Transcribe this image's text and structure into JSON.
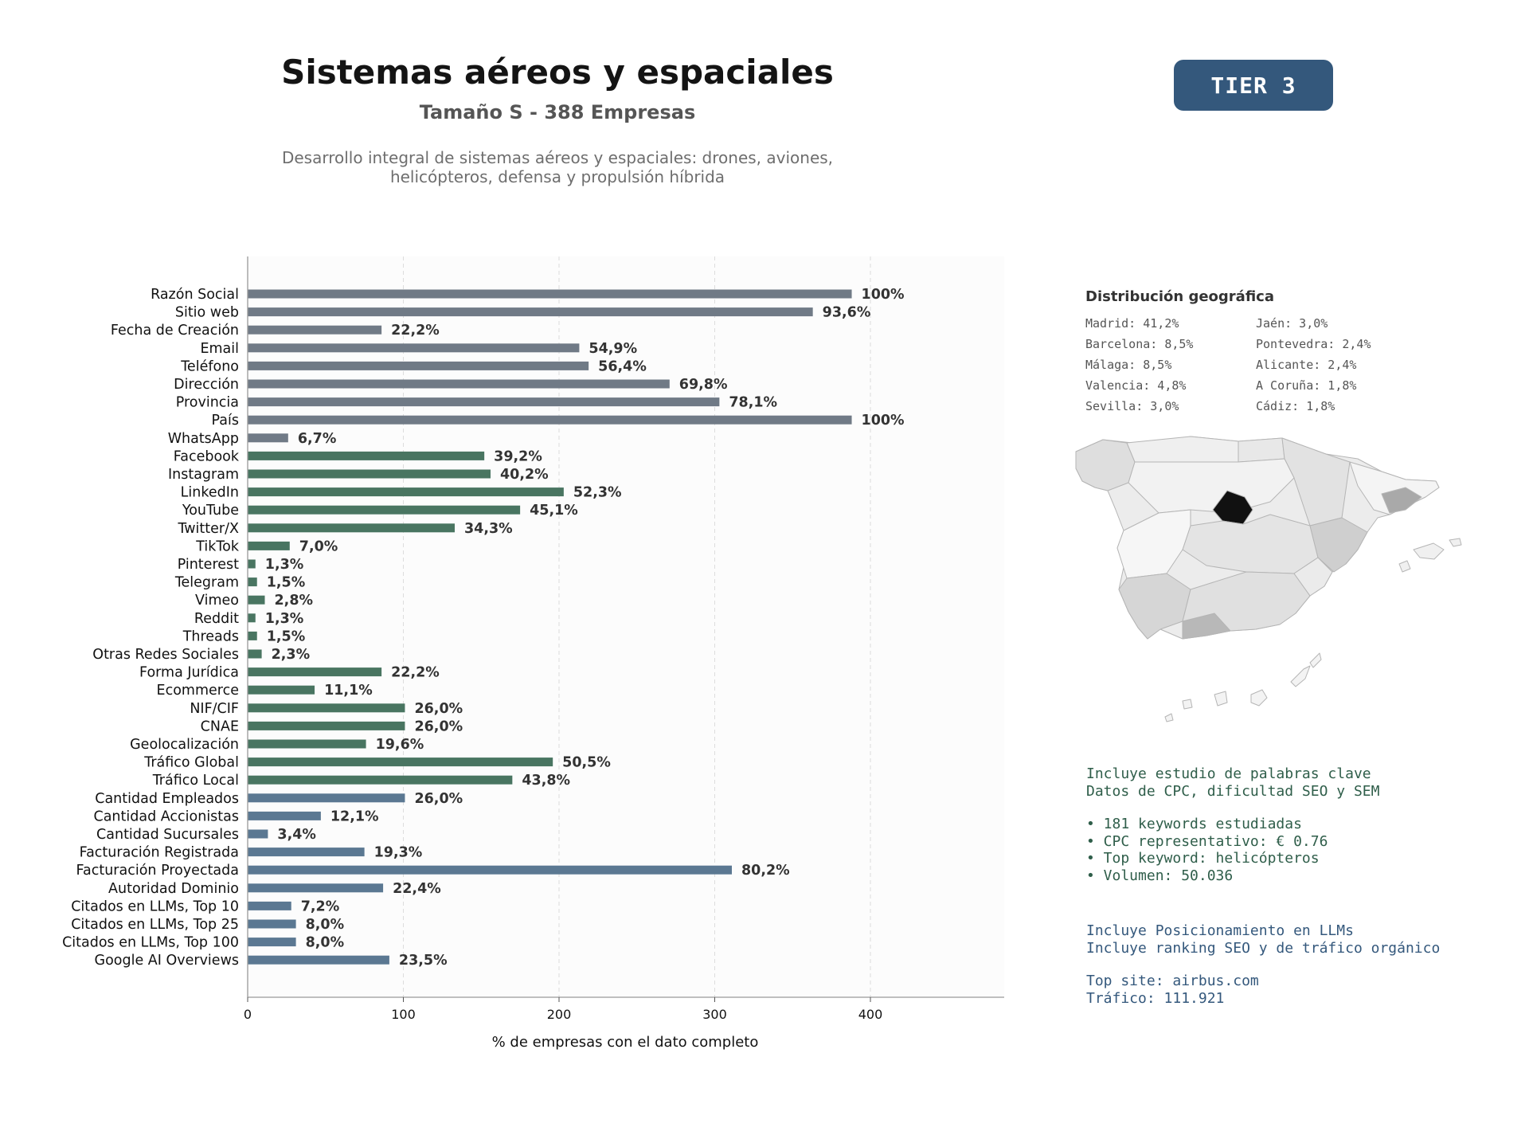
{
  "header": {
    "title": "Sistemas aéreos y espaciales",
    "subtitle": "Tamaño S - 388 Empresas",
    "description_line1": "Desarrollo integral de sistemas aéreos y espaciales: drones, aviones,",
    "description_line2": "helicópteros, defensa y propulsión híbrida",
    "tier_label": "TIER 3"
  },
  "colors": {
    "gray": "#707a86",
    "green": "#497561",
    "blue": "#5b7892"
  },
  "chart_data": {
    "type": "bar",
    "orientation": "horizontal",
    "xlabel": "% de empresas con el dato completo",
    "xlim": [
      0,
      480
    ],
    "xticks": [
      0,
      100,
      200,
      300,
      400
    ],
    "grid": "vertical dashed",
    "categories": [
      "Razón Social",
      "Sitio web",
      "Fecha de Creación",
      "Email",
      "Teléfono",
      "Dirección",
      "Provincia",
      "País",
      "WhatsApp",
      "Facebook",
      "Instagram",
      "LinkedIn",
      "YouTube",
      "Twitter/X",
      "TikTok",
      "Pinterest",
      "Telegram",
      "Vimeo",
      "Reddit",
      "Threads",
      "Otras Redes Sociales",
      "Forma Jurídica",
      "Ecommerce",
      "NIF/CIF",
      "CNAE",
      "Geolocalización",
      "Tráfico Global",
      "Tráfico Local",
      "Cantidad Empleados",
      "Cantidad Accionistas",
      "Cantidad Sucursales",
      "Facturación Registrada",
      "Facturación Proyectada",
      "Autoridad Dominio",
      "Citados en LLMs, Top 10",
      "Citados en LLMs, Top 25",
      "Citados en LLMs, Top 100",
      "Google AI Overviews"
    ],
    "values": [
      388,
      363,
      86,
      213,
      219,
      271,
      303,
      388,
      26,
      152,
      156,
      203,
      175,
      133,
      27,
      5,
      6,
      11,
      5,
      6,
      9,
      86,
      43,
      101,
      101,
      76,
      196,
      170,
      101,
      47,
      13,
      75,
      311,
      87,
      28,
      31,
      31,
      91
    ],
    "labels": [
      "100%",
      "93,6%",
      "22,2%",
      "54,9%",
      "56,4%",
      "69,8%",
      "78,1%",
      "100%",
      "6,7%",
      "39,2%",
      "40,2%",
      "52,3%",
      "45,1%",
      "34,3%",
      "7,0%",
      "1,3%",
      "1,5%",
      "2,8%",
      "1,3%",
      "1,5%",
      "2,3%",
      "22,2%",
      "11,1%",
      "26,0%",
      "26,0%",
      "19,6%",
      "50,5%",
      "43,8%",
      "26,0%",
      "12,1%",
      "3,4%",
      "19,3%",
      "80,2%",
      "22,4%",
      "7,2%",
      "8,0%",
      "8,0%",
      "23,5%"
    ],
    "groups": [
      "gray",
      "gray",
      "gray",
      "gray",
      "gray",
      "gray",
      "gray",
      "gray",
      "gray",
      "green",
      "green",
      "green",
      "green",
      "green",
      "green",
      "green",
      "green",
      "green",
      "green",
      "green",
      "green",
      "green",
      "green",
      "green",
      "green",
      "green",
      "green",
      "green",
      "blue",
      "blue",
      "blue",
      "blue",
      "blue",
      "blue",
      "blue",
      "blue",
      "blue",
      "blue"
    ]
  },
  "geo": {
    "title": "Distribución geográfica",
    "items": [
      "Madrid: 41,2%",
      "Jaén: 3,0%",
      "Barcelona: 8,5%",
      "Pontevedra: 2,4%",
      "Málaga: 8,5%",
      "Alicante: 2,4%",
      "Valencia: 4,8%",
      "A Coruña: 1,8%",
      "Sevilla: 3,0%",
      "Cádiz: 1,8%"
    ]
  },
  "keywords": {
    "line1": "Incluye estudio de palabras clave",
    "line2": "Datos de CPC, dificultad SEO y SEM",
    "b1": "• 181 keywords estudiadas",
    "b2": "• CPC representativo: € 0.76",
    "b3": "• Top keyword: helicópteros",
    "b4": "• Volumen: 50.036"
  },
  "llm": {
    "line1": "Incluye Posicionamiento en LLMs",
    "line2": "Incluye ranking SEO y de tráfico orgánico",
    "site": "Top site: airbus.com",
    "traffic": "Tráfico: 111.921"
  }
}
